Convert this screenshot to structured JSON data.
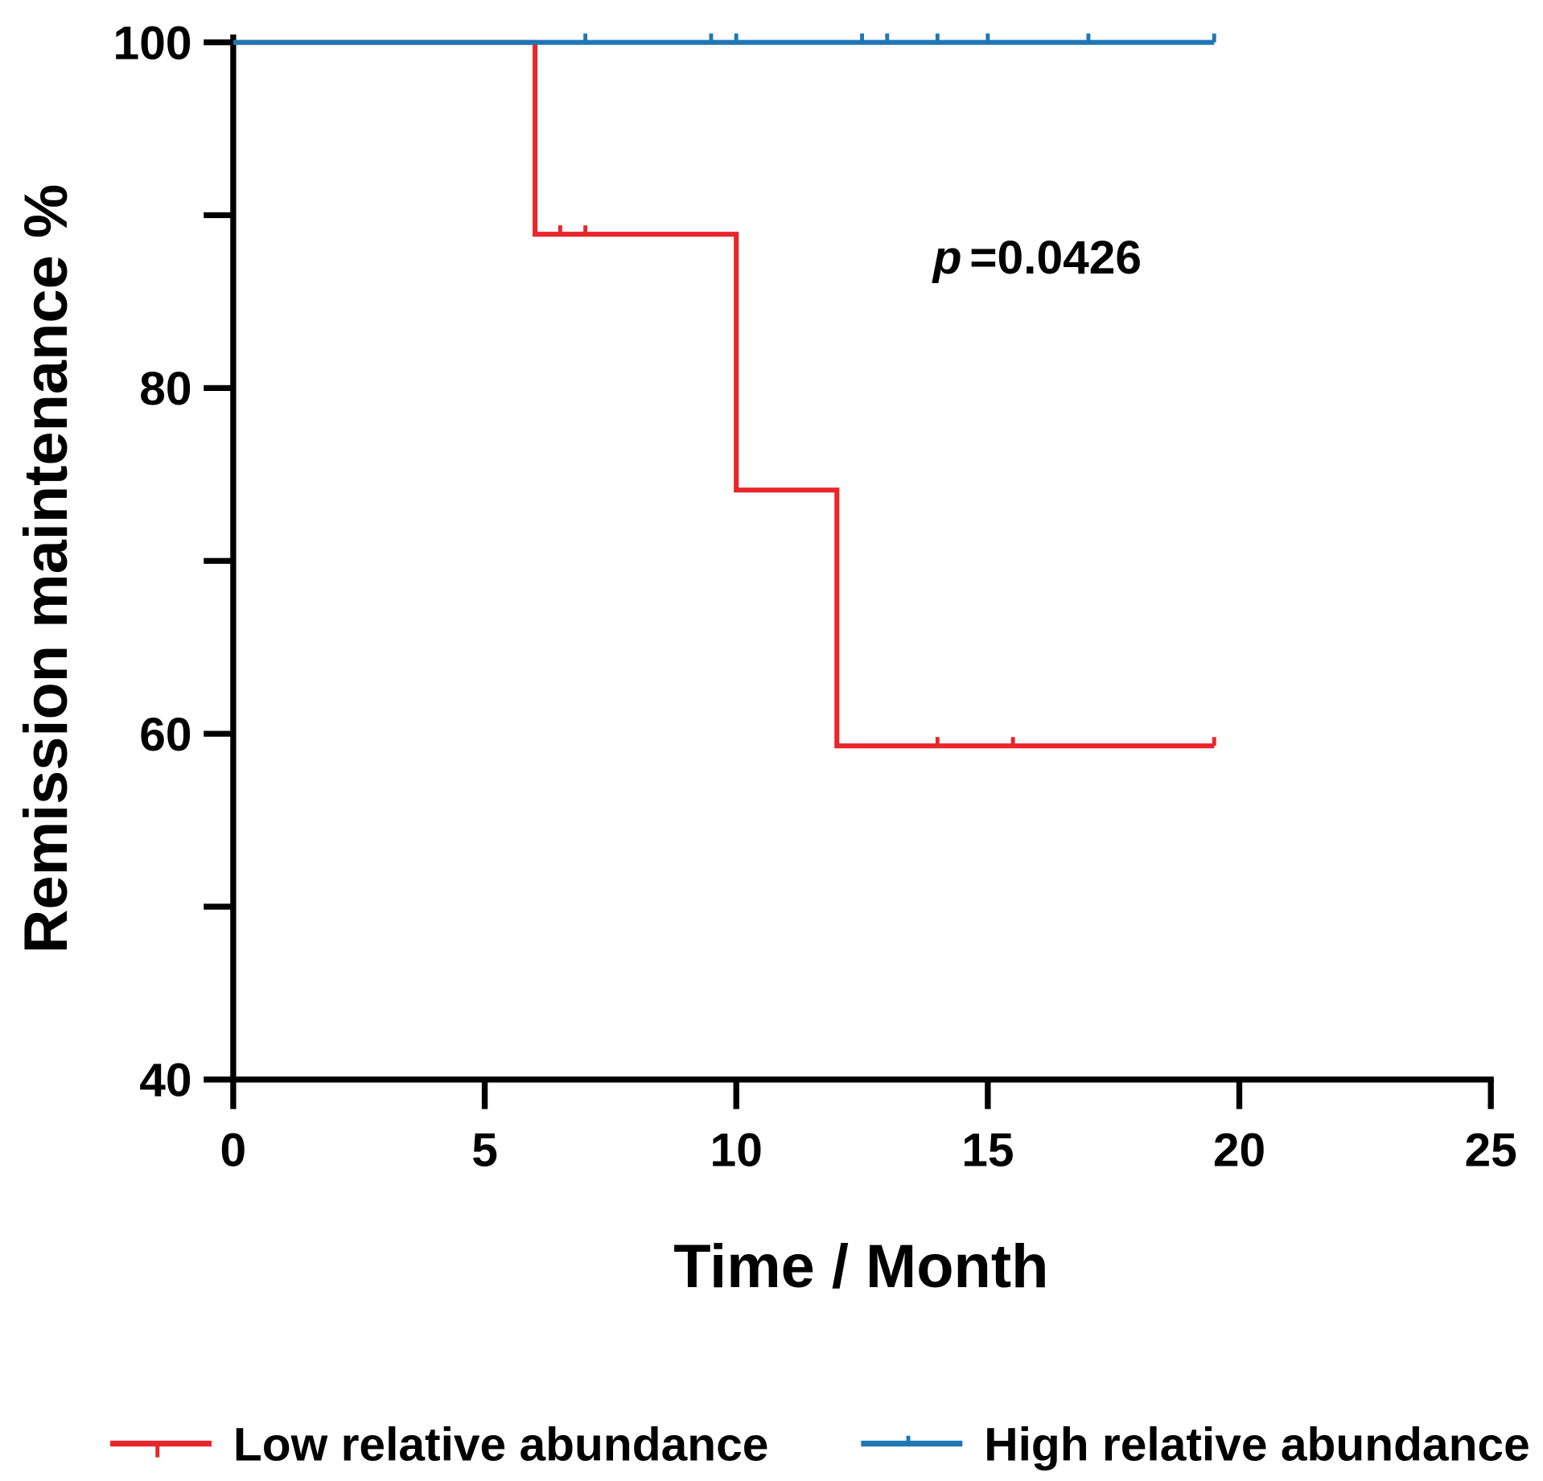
{
  "chart_data": {
    "type": "survival",
    "xlabel": "Time / Month",
    "ylabel": "Remission maintenance %",
    "annotation": {
      "italic": "p",
      "text": "=0.0426"
    },
    "xlim": [
      0,
      25
    ],
    "xticks": [
      0,
      5,
      10,
      15,
      20,
      25
    ],
    "ylim": [
      40,
      100
    ],
    "yticks": [
      40,
      60,
      80,
      100
    ],
    "yminorticks": [
      50,
      70,
      90
    ],
    "legend": "bottom",
    "series": [
      {
        "name": "Low relative abundance",
        "color": "#e8262b",
        "x": [
          0,
          6,
          6,
          10,
          10,
          12,
          12,
          19.5
        ],
        "values": [
          100,
          100,
          88.9,
          88.9,
          74.1,
          74.1,
          59.3,
          59.3
        ],
        "censored": {
          "x": [
            6.5,
            7,
            14,
            15.5,
            19.5
          ],
          "values": [
            88.9,
            88.9,
            59.3,
            59.3,
            59.3
          ]
        }
      },
      {
        "name": "High relative abundance",
        "color": "#1f77b4",
        "x": [
          0,
          19.5
        ],
        "values": [
          100,
          100
        ],
        "censored": {
          "x": [
            7,
            9.5,
            10,
            12.5,
            13,
            14,
            15,
            17,
            19.5
          ],
          "values": [
            100,
            100,
            100,
            100,
            100,
            100,
            100,
            100,
            100
          ]
        }
      }
    ]
  }
}
